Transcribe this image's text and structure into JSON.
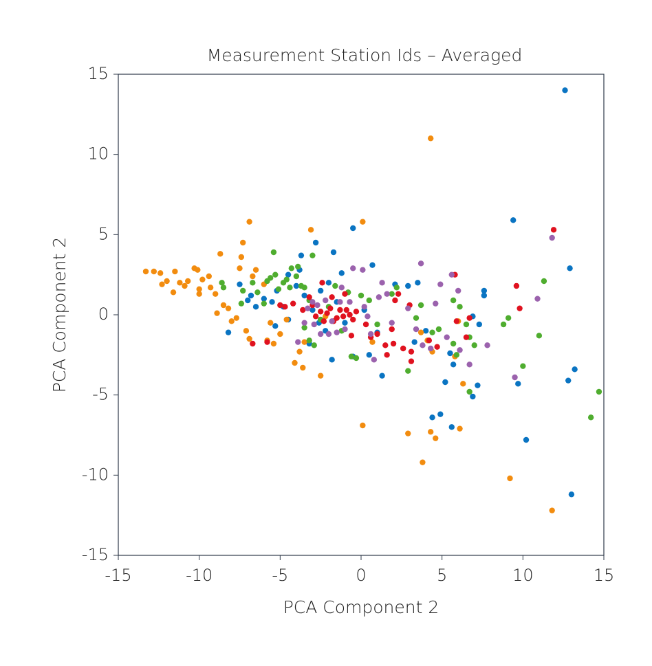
{
  "chart_data": {
    "type": "scatter",
    "title": "Measurement Station Ids – Averaged",
    "xlabel": "PCA Component 2",
    "ylabel": "PCA Component 2",
    "xlim": [
      -15,
      15
    ],
    "ylim": [
      -15,
      15
    ],
    "xticks": [
      -15,
      -10,
      -5,
      0,
      5,
      10,
      15
    ],
    "yticks": [
      -15,
      -10,
      -5,
      0,
      5,
      10,
      15
    ],
    "series": [
      {
        "color": "#0a74c2",
        "x": [
          12.6,
          9.4,
          12.9,
          -0.5,
          -2.8,
          13.2,
          12.8,
          13.0,
          10.2,
          9.7,
          6.9,
          7.2,
          4.9,
          4.4,
          5.6,
          5.2,
          7.6,
          7.6,
          7.3,
          6.9,
          2.1,
          0.7,
          -1.7,
          -3.7,
          1.3,
          3.5,
          2.9,
          5.5,
          5.7,
          4.0,
          -6.0,
          -5.5,
          -5.2,
          -4.8,
          -4.5,
          -4.0,
          -3.5,
          -3.0,
          -2.5,
          -2.0,
          -6.5,
          -6.8,
          -7.0,
          -7.5,
          -8.2,
          -5.3,
          -4.5,
          -3.8,
          -3.2,
          -2.6,
          -1.8,
          -1.5,
          -1.0,
          -0.5,
          0.2,
          0.5,
          1.0,
          -1.2,
          -2.2,
          3.3
        ],
        "y": [
          14.0,
          5.9,
          2.9,
          5.4,
          4.5,
          -3.4,
          -4.1,
          -11.2,
          -7.8,
          -4.3,
          -5.1,
          -4.4,
          -6.2,
          -6.4,
          -7.0,
          -4.2,
          1.5,
          1.2,
          -0.6,
          -0.1,
          1.9,
          3.1,
          3.9,
          3.7,
          -3.8,
          2.0,
          1.8,
          -2.4,
          -3.1,
          -1.0,
          1.0,
          0.8,
          1.5,
          0.5,
          2.5,
          1.8,
          1.2,
          0.3,
          1.5,
          2.0,
          0.5,
          1.2,
          0.9,
          1.9,
          -1.1,
          -0.7,
          -0.3,
          2.8,
          -1.8,
          -0.5,
          -2.8,
          0.8,
          -0.5,
          -2.6,
          0.3,
          -2.5,
          -1.1,
          2.6,
          -1.0,
          -1.7
        ]
      },
      {
        "color": "#f28c0f",
        "x": [
          -13.3,
          -12.8,
          -12.4,
          -12.3,
          -12.0,
          -11.6,
          -11.5,
          -11.2,
          -10.9,
          -10.7,
          -10.3,
          -10.1,
          -10.0,
          -10.0,
          -9.8,
          -9.4,
          -9.3,
          -9.0,
          -8.9,
          -8.7,
          -8.5,
          -8.2,
          -8.0,
          -7.7,
          -7.5,
          -7.4,
          -7.3,
          -7.1,
          -6.9,
          -6.9,
          -6.7,
          -6.5,
          -6.0,
          -5.8,
          -5.6,
          -5.4,
          -5.0,
          -4.6,
          -4.1,
          -3.8,
          -3.6,
          -3.5,
          -3.1,
          -2.5,
          -2.2,
          0.1,
          0.1,
          0.7,
          2.9,
          3.8,
          4.3,
          4.3,
          4.6,
          4.4,
          5.8,
          6.1,
          6.3,
          9.2,
          11.8,
          3.7,
          4.1,
          6.0
        ],
        "y": [
          2.7,
          2.7,
          2.6,
          1.9,
          2.1,
          1.4,
          2.7,
          2.0,
          1.8,
          2.1,
          2.9,
          2.8,
          1.6,
          1.3,
          2.2,
          2.4,
          1.7,
          1.3,
          0.1,
          3.8,
          0.6,
          0.4,
          -0.4,
          -0.2,
          2.9,
          3.6,
          4.5,
          -1.0,
          5.8,
          -1.5,
          2.4,
          2.8,
          1.9,
          -1.6,
          -0.5,
          -1.8,
          -1.2,
          -0.3,
          -3.0,
          -2.3,
          -3.3,
          -1.7,
          5.3,
          -3.8,
          -0.1,
          5.8,
          -6.9,
          -1.7,
          -7.4,
          -9.2,
          11.0,
          -7.3,
          -7.7,
          -2.3,
          -2.6,
          -7.1,
          -4.3,
          -10.2,
          -12.2,
          -1.1,
          -1.6,
          -0.4
        ]
      },
      {
        "color": "#4fad2f",
        "x": [
          -8.6,
          -8.5,
          -7.4,
          -7.3,
          -6.7,
          -6.4,
          -6.0,
          -5.8,
          -5.6,
          -5.4,
          -5.3,
          -5.1,
          -4.8,
          -4.6,
          -4.4,
          -4.3,
          -4.0,
          -3.9,
          -3.7,
          -3.5,
          -3.2,
          -3.0,
          -3.5,
          -3.2,
          -2.9,
          -2.5,
          -2.0,
          -1.6,
          -1.2,
          -0.8,
          -0.6,
          -0.3,
          0.0,
          0.5,
          1.0,
          1.9,
          2.2,
          2.9,
          3.4,
          3.7,
          4.4,
          4.8,
          5.7,
          5.9,
          6.5,
          6.7,
          7.0,
          6.7,
          5.7,
          8.8,
          9.1,
          10.0,
          11.0,
          11.3,
          14.2,
          14.7,
          6.1
        ],
        "y": [
          2.0,
          1.7,
          0.7,
          1.5,
          2.0,
          1.4,
          0.7,
          2.1,
          2.3,
          3.9,
          2.5,
          1.6,
          2.0,
          2.2,
          1.7,
          2.9,
          2.4,
          3.0,
          1.8,
          1.7,
          0.9,
          3.7,
          -0.8,
          -1.6,
          -1.9,
          -0.3,
          0.5,
          1.8,
          -1.0,
          1.4,
          -2.6,
          -2.7,
          1.2,
          0.9,
          -0.6,
          1.3,
          1.7,
          -3.5,
          -0.2,
          0.6,
          -1.1,
          -0.9,
          -1.8,
          -2.5,
          -0.6,
          -1.4,
          -1.9,
          -4.8,
          0.9,
          -0.6,
          -0.2,
          -3.2,
          -1.3,
          2.1,
          -6.4,
          -4.8,
          0.5
        ]
      },
      {
        "color": "#e0121f",
        "x": [
          -6.7,
          -5.8,
          -5.0,
          -4.7,
          -4.2,
          -3.6,
          -3.2,
          -3.0,
          -2.8,
          -2.5,
          -2.3,
          -2.1,
          -1.9,
          -1.7,
          -1.5,
          -1.3,
          -1.1,
          -0.9,
          -0.7,
          -0.5,
          -0.3,
          -2.4,
          -1.8,
          -1.0,
          0.3,
          0.6,
          1.0,
          1.5,
          1.9,
          2.3,
          2.0,
          1.6,
          2.6,
          3.1,
          3.1,
          4.2,
          4.7,
          5.8,
          5.9,
          6.5,
          6.7,
          9.6,
          9.8,
          11.9,
          2.1,
          3.0,
          -0.6
        ],
        "y": [
          -1.8,
          -1.7,
          0.6,
          0.5,
          0.7,
          0.3,
          1.1,
          0.6,
          -0.1,
          0.2,
          -0.4,
          0.1,
          0.4,
          -0.4,
          -0.2,
          0.3,
          -0.1,
          0.3,
          0.0,
          -0.3,
          0.2,
          2.0,
          1.1,
          1.3,
          -0.6,
          -1.4,
          -1.2,
          -1.9,
          -0.9,
          1.3,
          -1.8,
          -2.5,
          -2.1,
          -2.9,
          -2.3,
          -1.6,
          -2.0,
          2.5,
          -0.4,
          -1.4,
          -0.2,
          1.8,
          0.4,
          5.3,
          0.9,
          0.6,
          -1.3
        ]
      },
      {
        "color": "#9b62ad",
        "x": [
          -3.9,
          -3.5,
          -3.3,
          -3.0,
          -2.9,
          -2.7,
          -2.5,
          -2.2,
          -2.0,
          -1.8,
          -1.5,
          -1.3,
          -1.0,
          -0.7,
          -0.5,
          0.2,
          0.4,
          0.6,
          0.8,
          1.1,
          1.3,
          1.6,
          1.9,
          2.9,
          3.4,
          3.7,
          3.8,
          4.3,
          4.6,
          4.9,
          5.3,
          5.6,
          6.0,
          6.1,
          6.7,
          7.8,
          9.5,
          10.9,
          11.8,
          -1.2,
          0.1
        ],
        "y": [
          -1.7,
          -0.5,
          0.4,
          0.8,
          -0.6,
          0.6,
          -1.2,
          0.9,
          -1.2,
          -0.4,
          -1.1,
          0.8,
          -0.9,
          0.8,
          2.9,
          0.5,
          -0.1,
          -1.2,
          -2.8,
          1.1,
          2.0,
          1.3,
          -0.5,
          0.4,
          -0.9,
          3.2,
          -1.9,
          -2.1,
          0.7,
          1.9,
          -1.4,
          2.5,
          1.5,
          -2.2,
          -3.1,
          -1.9,
          -3.9,
          1.0,
          4.8,
          1.7,
          2.8
        ]
      }
    ]
  }
}
